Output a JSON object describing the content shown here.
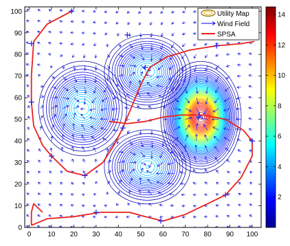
{
  "chart_data": {
    "type": "contour",
    "title": "",
    "xlabel": "",
    "ylabel": "",
    "xlim": [
      -2,
      104
    ],
    "ylim": [
      0,
      102
    ],
    "x_ticks": [
      0,
      10,
      20,
      30,
      40,
      50,
      60,
      70,
      80,
      90,
      100
    ],
    "y_ticks": [
      0,
      10,
      20,
      30,
      40,
      50,
      60,
      70,
      80,
      90,
      100
    ],
    "colorbar": {
      "range": [
        0,
        14.5
      ],
      "ticks": [
        2,
        4,
        6,
        8,
        10,
        12,
        14
      ],
      "colormap": "jet"
    },
    "legend": {
      "position": "top-right",
      "entries": [
        "Utility Map",
        "Wind Field",
        "SPSA"
      ]
    },
    "utility_peaks": [
      {
        "x": 24,
        "y": 55,
        "height": 5.5,
        "sx": 9,
        "sy": 10
      },
      {
        "x": 77,
        "y": 51,
        "height": 14,
        "sx": 7,
        "sy": 10
      },
      {
        "x": 53,
        "y": 28,
        "height": 5,
        "sx": 9,
        "sy": 8
      },
      {
        "x": 53,
        "y": 72,
        "height": 5,
        "sx": 9,
        "sy": 8
      }
    ],
    "spsa_path": [
      [
        19,
        100
      ],
      [
        8,
        94
      ],
      [
        2,
        86
      ],
      [
        1,
        70
      ],
      [
        1,
        58
      ],
      [
        2,
        47
      ],
      [
        6,
        38
      ],
      [
        10,
        33
      ],
      [
        17,
        26
      ],
      [
        25,
        24
      ],
      [
        33,
        30
      ],
      [
        38,
        38
      ],
      [
        42,
        46
      ],
      [
        46,
        56
      ],
      [
        50,
        66
      ],
      [
        54,
        74
      ],
      [
        62,
        79
      ],
      [
        72,
        82
      ],
      [
        84,
        84
      ],
      [
        95,
        85
      ],
      [
        101,
        86
      ]
    ],
    "spsa_path_lower": [
      [
        1,
        1
      ],
      [
        8,
        4
      ],
      [
        20,
        5
      ],
      [
        32,
        7
      ],
      [
        45,
        7
      ],
      [
        52,
        5
      ],
      [
        60,
        3
      ],
      [
        70,
        6
      ],
      [
        80,
        11
      ],
      [
        88,
        15
      ],
      [
        95,
        23
      ],
      [
        100,
        33
      ],
      [
        100,
        40
      ],
      [
        96,
        45
      ],
      [
        88,
        50
      ],
      [
        78,
        52
      ],
      [
        68,
        52
      ],
      [
        60,
        51
      ],
      [
        52,
        49
      ],
      [
        44,
        48
      ],
      [
        36,
        49
      ]
    ],
    "spsa_left_tail": [
      [
        1,
        1
      ],
      [
        1,
        7
      ],
      [
        2,
        11
      ],
      [
        6,
        7
      ]
    ],
    "spsa_markers": [
      [
        19,
        100
      ],
      [
        1,
        85
      ],
      [
        1,
        58
      ],
      [
        10,
        33
      ],
      [
        25,
        24
      ],
      [
        42,
        46
      ],
      [
        44,
        89
      ],
      [
        52,
        74
      ],
      [
        84,
        84
      ],
      [
        76,
        51
      ],
      [
        100,
        40
      ],
      [
        88,
        15
      ],
      [
        59,
        3
      ],
      [
        30,
        7
      ]
    ]
  }
}
